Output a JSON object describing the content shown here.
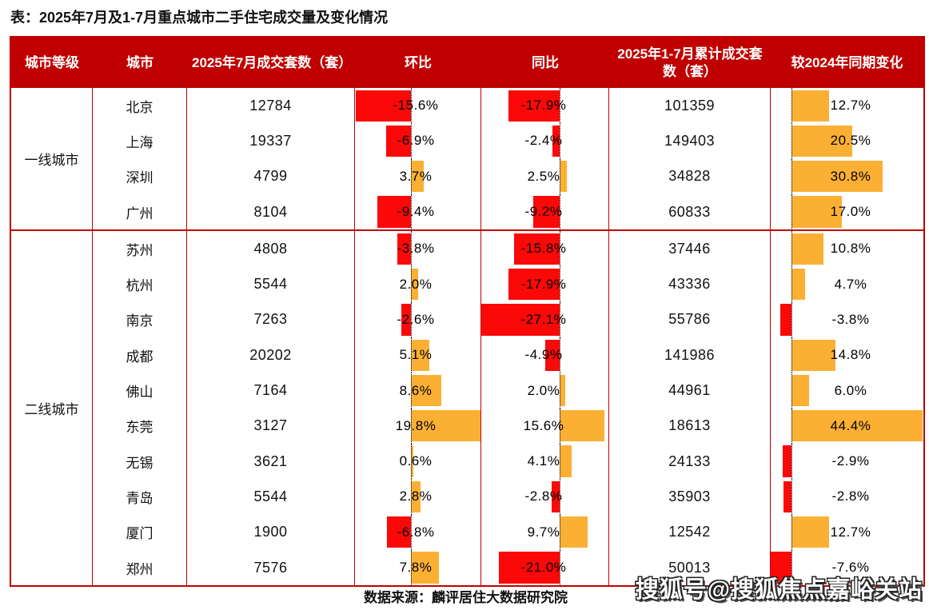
{
  "title": "表：2025年7月及1-7月重点城市二手住宅成交量及变化情况",
  "colors": {
    "header_bg": "#c00000",
    "grid_border": "#c00000",
    "bar_negative": "#fb0808",
    "bar_positive": "#fbb034"
  },
  "chart_data": {
    "type": "table",
    "title": "2025年7月及1-7月重点城市二手住宅成交量及变化情况",
    "columns": [
      "城市等级",
      "城市",
      "2025年7月成交套数（套）",
      "环比",
      "同比",
      "2025年1-7月累计成交套数（套）",
      "较2024年同期变化"
    ],
    "bar_columns_note": "环比 / 同比 / 较2024年同期变化 render as in-cell data bars: negative=red leftward, positive=orange rightward from dotted baseline",
    "groups": [
      {
        "tier": "一线城市",
        "rows": [
          {
            "city": "北京",
            "jul_units": "12784",
            "mom_pct": -15.6,
            "yoy_pct": -17.9,
            "cum_units": "101359",
            "cum_vs2024_pct": 12.7
          },
          {
            "city": "上海",
            "jul_units": "19337",
            "mom_pct": -6.9,
            "yoy_pct": -2.4,
            "cum_units": "149403",
            "cum_vs2024_pct": 20.5
          },
          {
            "city": "深圳",
            "jul_units": "4799",
            "mom_pct": 3.7,
            "yoy_pct": 2.5,
            "cum_units": "34828",
            "cum_vs2024_pct": 30.8
          },
          {
            "city": "广州",
            "jul_units": "8104",
            "mom_pct": -9.4,
            "yoy_pct": -9.2,
            "cum_units": "60833",
            "cum_vs2024_pct": 17.0
          }
        ]
      },
      {
        "tier": "二线城市",
        "rows": [
          {
            "city": "苏州",
            "jul_units": "4808",
            "mom_pct": -3.8,
            "yoy_pct": -15.8,
            "cum_units": "37446",
            "cum_vs2024_pct": 10.8
          },
          {
            "city": "杭州",
            "jul_units": "5544",
            "mom_pct": 2.0,
            "yoy_pct": -17.9,
            "cum_units": "43336",
            "cum_vs2024_pct": 4.7
          },
          {
            "city": "南京",
            "jul_units": "7263",
            "mom_pct": -2.6,
            "yoy_pct": -27.1,
            "cum_units": "55786",
            "cum_vs2024_pct": -3.8
          },
          {
            "city": "成都",
            "jul_units": "20202",
            "mom_pct": 5.1,
            "yoy_pct": -4.9,
            "cum_units": "141986",
            "cum_vs2024_pct": 14.8
          },
          {
            "city": "佛山",
            "jul_units": "7164",
            "mom_pct": 8.6,
            "yoy_pct": 2.0,
            "cum_units": "44961",
            "cum_vs2024_pct": 6.0
          },
          {
            "city": "东莞",
            "jul_units": "3127",
            "mom_pct": 19.8,
            "yoy_pct": 15.6,
            "cum_units": "18613",
            "cum_vs2024_pct": 44.4
          },
          {
            "city": "无锡",
            "jul_units": "3621",
            "mom_pct": 0.6,
            "yoy_pct": 4.1,
            "cum_units": "24133",
            "cum_vs2024_pct": -2.9
          },
          {
            "city": "青岛",
            "jul_units": "5544",
            "mom_pct": 2.8,
            "yoy_pct": -2.8,
            "cum_units": "35903",
            "cum_vs2024_pct": -2.8
          },
          {
            "city": "厦门",
            "jul_units": "1900",
            "mom_pct": -6.8,
            "yoy_pct": 9.7,
            "cum_units": "12542",
            "cum_vs2024_pct": 12.7
          },
          {
            "city": "郑州",
            "jul_units": "7576",
            "mom_pct": 7.8,
            "yoy_pct": -21.0,
            "cum_units": "50013",
            "cum_vs2024_pct": -7.6
          }
        ]
      }
    ]
  },
  "footer": {
    "source": "数据来源：麟评居住大数据研究院",
    "watermark": "搜狐号@搜狐焦点嘉峪关站"
  }
}
